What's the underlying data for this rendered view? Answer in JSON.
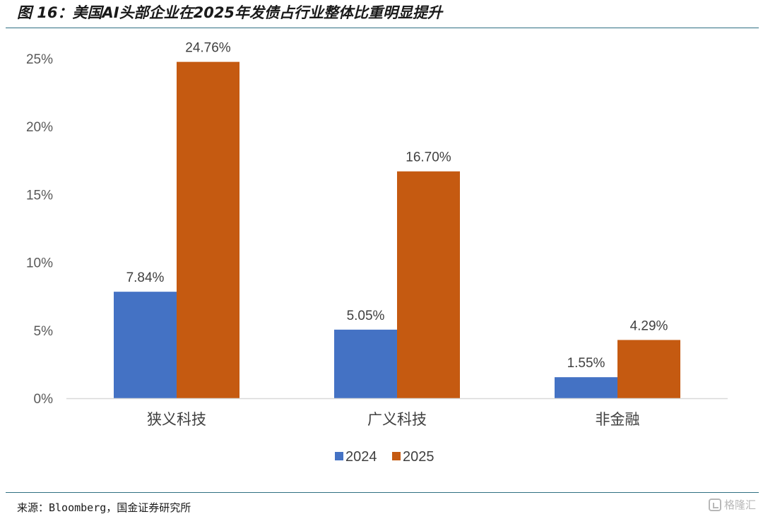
{
  "header": {
    "title": "图 16：美国AI头部企业在2025年发债占行业整体比重明显提升"
  },
  "footer": {
    "source": "来源：Bloomberg，国金证券研究所",
    "watermark": "格隆汇"
  },
  "chart_data": {
    "type": "bar",
    "title": "",
    "xlabel": "",
    "ylabel": "",
    "categories": [
      "狭义科技",
      "广义科技",
      "非金融"
    ],
    "series": [
      {
        "name": "2024",
        "color": "#4472c4",
        "values": [
          7.84,
          5.05,
          1.55
        ],
        "labels": [
          "7.84%",
          "5.05%",
          "1.55%"
        ]
      },
      {
        "name": "2025",
        "color": "#c55a11",
        "values": [
          24.76,
          16.7,
          4.29
        ],
        "labels": [
          "24.76%",
          "16.70%",
          "4.29%"
        ]
      }
    ],
    "ylim": [
      0,
      25
    ],
    "yticks": [
      0,
      5,
      10,
      15,
      20,
      25
    ],
    "ytick_labels": [
      "0%",
      "5%",
      "10%",
      "15%",
      "20%",
      "25%"
    ],
    "grid": false,
    "legend_position": "bottom-center"
  }
}
